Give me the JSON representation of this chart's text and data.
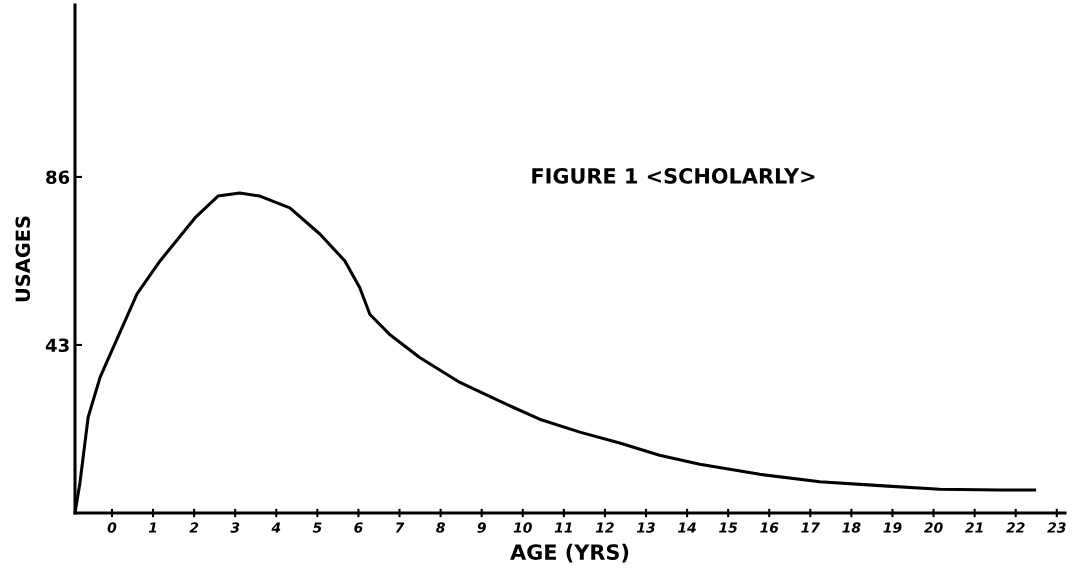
{
  "chart_data": {
    "type": "line",
    "title": "FIGURE 1 <SCHOLARLY>",
    "xlabel": "AGE (YRS)",
    "ylabel": "USAGES",
    "x": [
      -0.9,
      -0.78,
      -0.58,
      -0.29,
      0,
      0.61,
      1.17,
      2.02,
      2.58,
      3.11,
      3.6,
      4.33,
      5.06,
      5.67,
      6.03,
      6.28,
      6.76,
      7.49,
      8.47,
      9.44,
      10.41,
      11.39,
      12.36,
      13.33,
      14.31,
      15.77,
      17.23,
      18.69,
      20.15,
      21.61,
      22.46
    ],
    "series": [
      {
        "color": "#000000",
        "values": [
          0,
          7.7,
          24.5,
          34.7,
          41.6,
          56.1,
          64.5,
          75.5,
          81.1,
          81.9,
          81.1,
          78.1,
          71.4,
          64.5,
          57.7,
          50.8,
          45.7,
          39.8,
          33.4,
          28.6,
          24.0,
          20.7,
          17.9,
          14.8,
          12.5,
          9.9,
          8.0,
          7.0,
          6.1,
          5.9,
          5.9
        ]
      }
    ],
    "xlim": [
      -0.9,
      23.2
    ],
    "ylim": [
      0,
      130
    ],
    "xticks": [
      0,
      1,
      2,
      3,
      4,
      5,
      6,
      7,
      8,
      9,
      10,
      11,
      12,
      13,
      14,
      15,
      16,
      17,
      18,
      19,
      20,
      21,
      22,
      23
    ],
    "yticks": [
      43,
      86
    ],
    "grid": false,
    "legend": false,
    "marker": "none",
    "line_style": "solid"
  }
}
